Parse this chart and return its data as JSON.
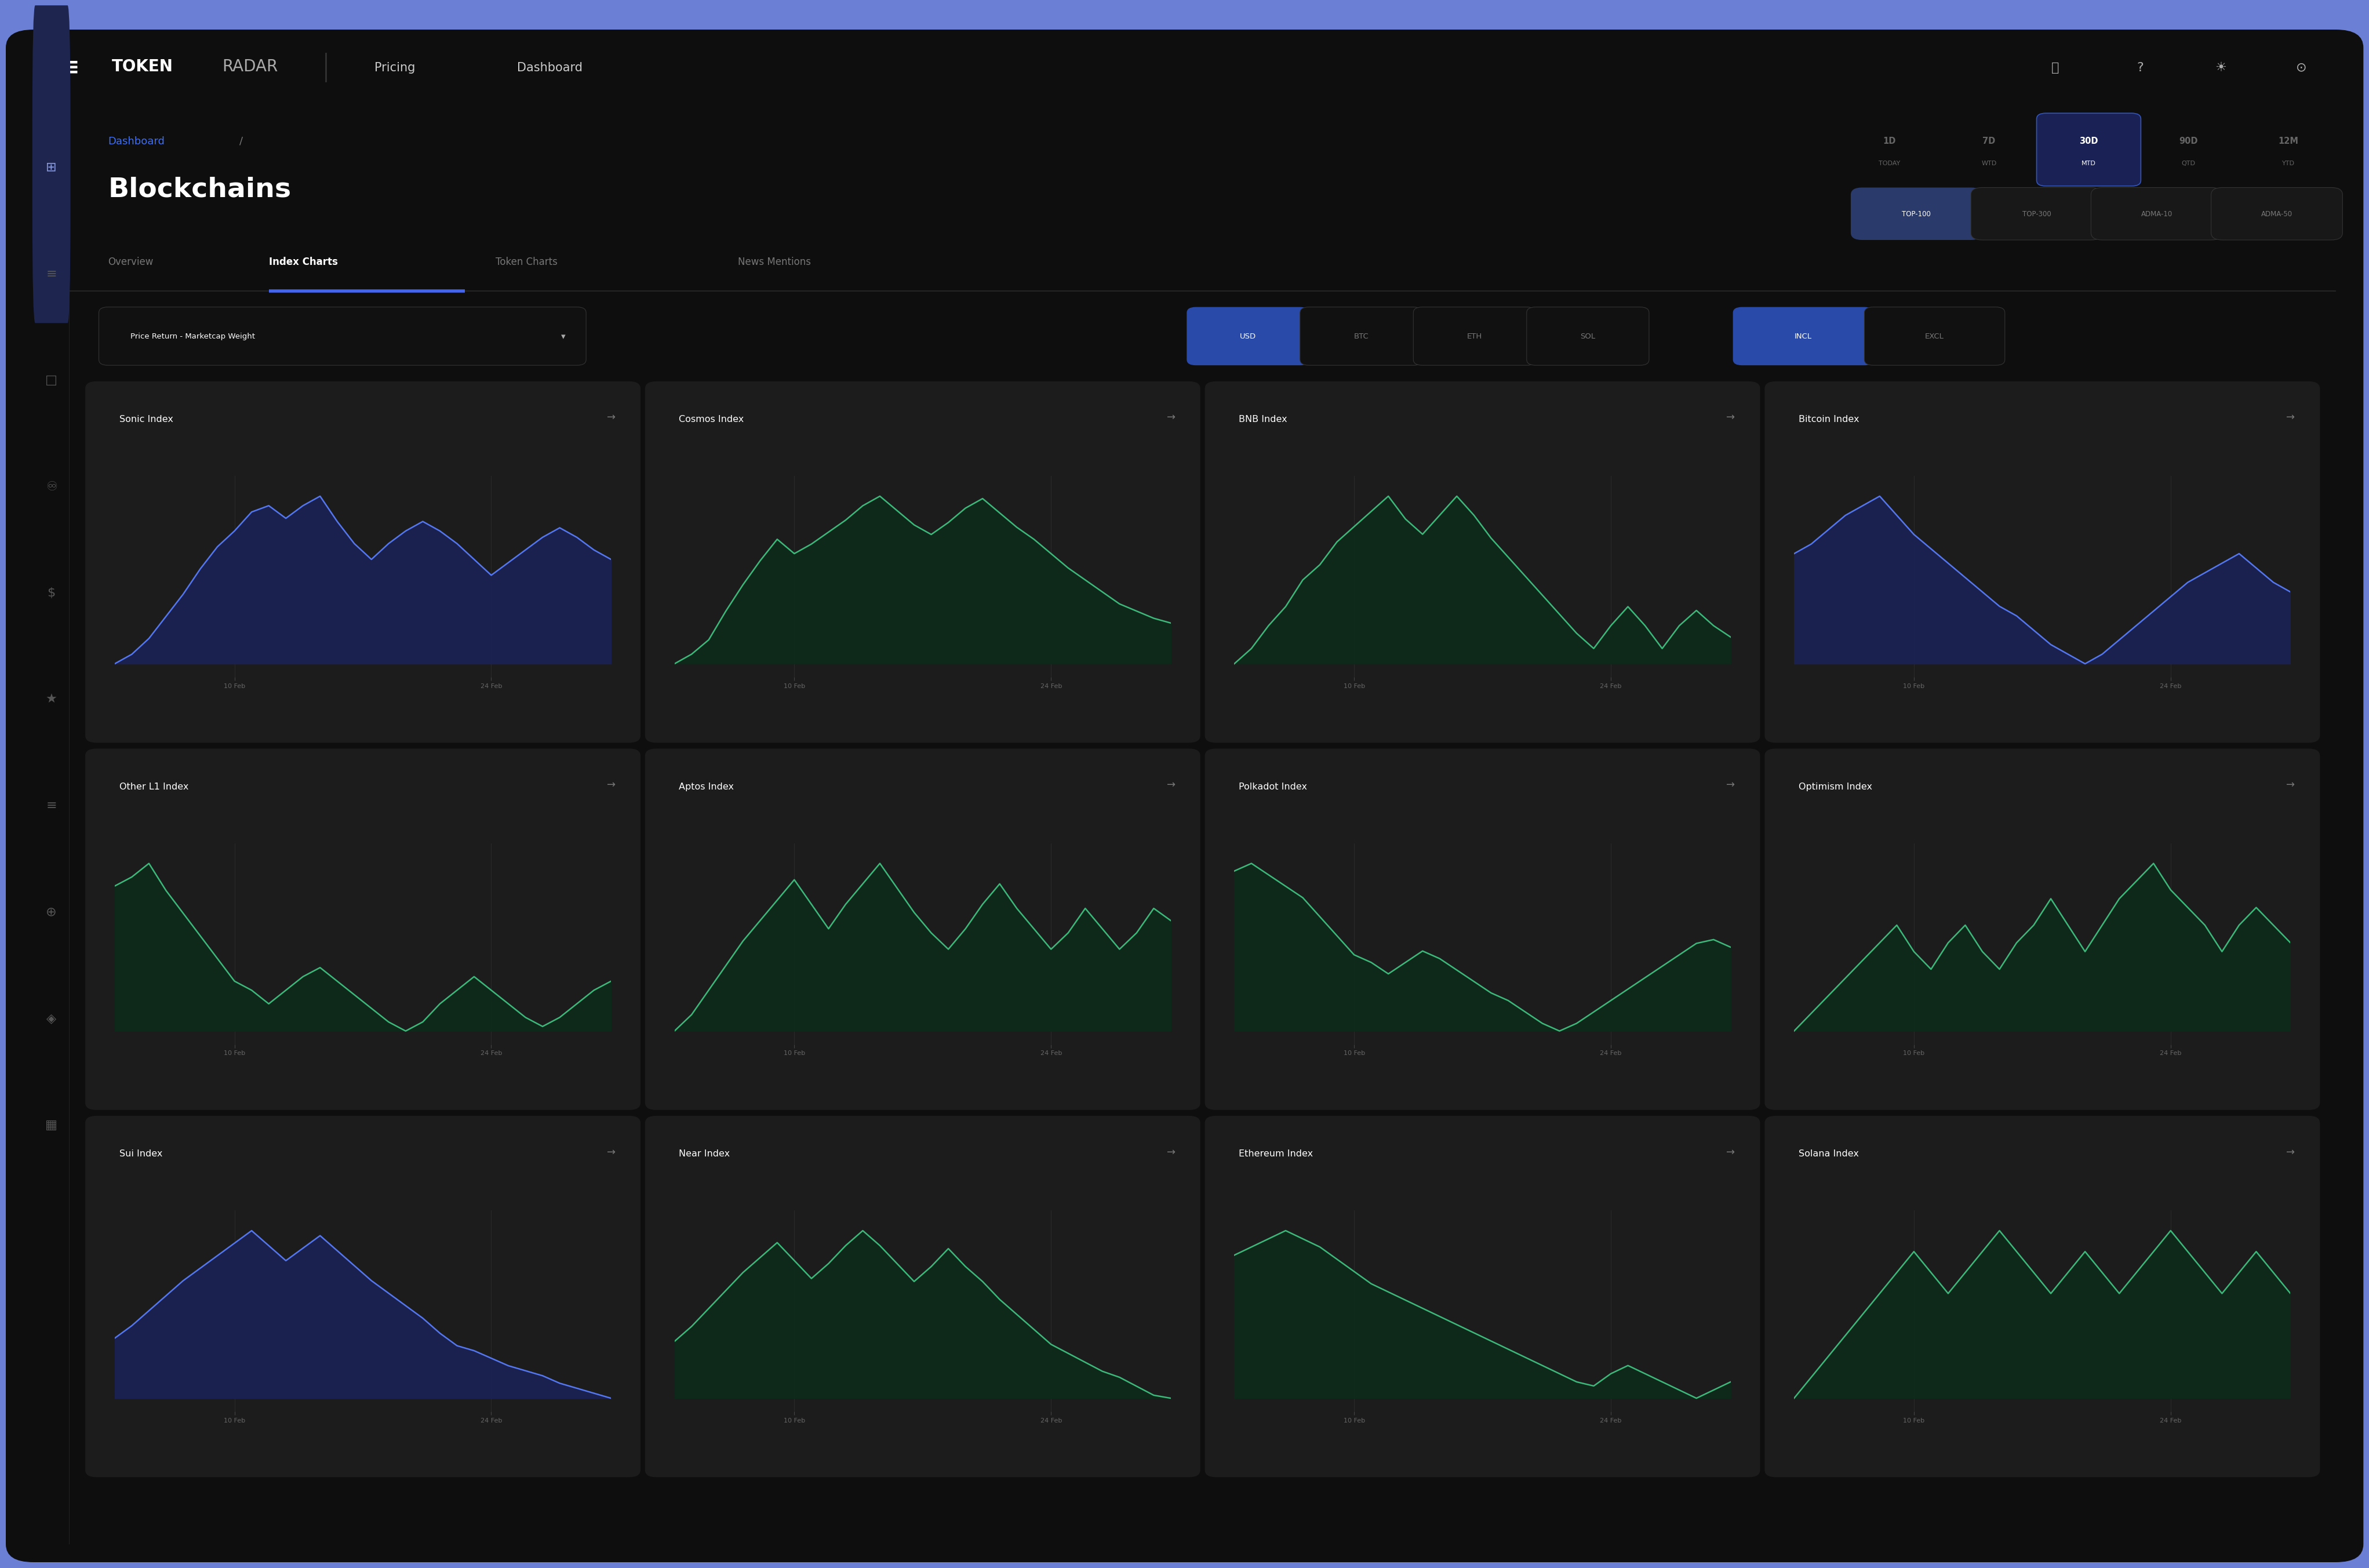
{
  "bg_outer": "#6b7fd4",
  "bg_app": "#0e0e0e",
  "bg_topbar": "#111111",
  "bg_content": "#0d0d0d",
  "bg_card": "#1c1c1c",
  "bg_sidebar": "#0d0d0d",
  "bg_sidebar_hl": "#1e2650",
  "color_blue": "#3d6ef5",
  "color_blue_btn": "#2a4aaa",
  "color_active_tab_line": "#4466ee",
  "color_line_blue": "#5577ee",
  "color_fill_blue": "#1a2255",
  "color_line_green": "#3db87a",
  "color_fill_green": "#0d2a1a",
  "charts": [
    {
      "title": "Sonic Index",
      "line": "#5577ee",
      "fill": "#1a2255"
    },
    {
      "title": "Cosmos Index",
      "line": "#3db87a",
      "fill": "#0d2a1a"
    },
    {
      "title": "BNB Index",
      "line": "#3db87a",
      "fill": "#0d2a1a"
    },
    {
      "title": "Bitcoin Index",
      "line": "#5577ee",
      "fill": "#1a2255"
    },
    {
      "title": "Other L1 Index",
      "line": "#3db87a",
      "fill": "#0d2a1a"
    },
    {
      "title": "Aptos Index",
      "line": "#3db87a",
      "fill": "#0d2a1a"
    },
    {
      "title": "Polkadot Index",
      "line": "#3db87a",
      "fill": "#0d2a1a"
    },
    {
      "title": "Optimism Index",
      "line": "#3db87a",
      "fill": "#0d2a1a"
    },
    {
      "title": "Sui Index",
      "line": "#5577ee",
      "fill": "#1a2255"
    },
    {
      "title": "Near Index",
      "line": "#3db87a",
      "fill": "#0d2a1a"
    },
    {
      "title": "Ethereum Index",
      "line": "#3db87a",
      "fill": "#0d2a1a"
    },
    {
      "title": "Solana Index",
      "line": "#3db87a",
      "fill": "#0d2a1a"
    }
  ],
  "xtick_labels": [
    "10 Feb",
    "24 Feb"
  ],
  "sonic_y": [
    30,
    33,
    38,
    45,
    52,
    60,
    67,
    72,
    78,
    80,
    76,
    80,
    83,
    75,
    68,
    63,
    68,
    72,
    75,
    72,
    68,
    63,
    58,
    62,
    66,
    70,
    73,
    70,
    66,
    63
  ],
  "cosmos_y": [
    20,
    24,
    30,
    42,
    53,
    63,
    72,
    66,
    70,
    75,
    80,
    86,
    90,
    84,
    78,
    74,
    79,
    85,
    89,
    83,
    77,
    72,
    66,
    60,
    55,
    50,
    45,
    42,
    39,
    37
  ],
  "bnb_y": [
    40,
    44,
    50,
    55,
    62,
    66,
    72,
    76,
    80,
    84,
    78,
    74,
    79,
    84,
    79,
    73,
    68,
    63,
    58,
    53,
    48,
    44,
    50,
    55,
    50,
    44,
    50,
    54,
    50,
    47
  ],
  "bitcoin_y": [
    50,
    52,
    55,
    58,
    60,
    62,
    58,
    54,
    51,
    48,
    45,
    42,
    39,
    37,
    34,
    31,
    29,
    27,
    29,
    32,
    35,
    38,
    41,
    44,
    46,
    48,
    50,
    47,
    44,
    42
  ],
  "other_l1_y": [
    50,
    52,
    55,
    49,
    44,
    39,
    34,
    29,
    27,
    24,
    27,
    30,
    32,
    29,
    26,
    23,
    20,
    18,
    20,
    24,
    27,
    30,
    27,
    24,
    21,
    19,
    21,
    24,
    27,
    29
  ],
  "aptos_y": [
    30,
    34,
    40,
    46,
    52,
    57,
    62,
    67,
    61,
    55,
    61,
    66,
    71,
    65,
    59,
    54,
    50,
    55,
    61,
    66,
    60,
    55,
    50,
    54,
    60,
    55,
    50,
    54,
    60,
    57
  ],
  "polkadot_y": [
    50,
    52,
    49,
    46,
    43,
    38,
    33,
    28,
    26,
    23,
    26,
    29,
    27,
    24,
    21,
    18,
    16,
    13,
    10,
    8,
    10,
    13,
    16,
    19,
    22,
    25,
    28,
    31,
    32,
    30
  ],
  "optimism_y": [
    40,
    42,
    44,
    46,
    48,
    50,
    52,
    49,
    47,
    50,
    52,
    49,
    47,
    50,
    52,
    55,
    52,
    49,
    52,
    55,
    57,
    59,
    56,
    54,
    52,
    49,
    52,
    54,
    52,
    50
  ],
  "sui_y": [
    30,
    35,
    41,
    47,
    53,
    58,
    63,
    68,
    73,
    67,
    61,
    66,
    71,
    65,
    59,
    53,
    48,
    43,
    38,
    32,
    27,
    25,
    22,
    19,
    17,
    15,
    12,
    10,
    8,
    6
  ],
  "near_y": [
    30,
    35,
    41,
    47,
    53,
    58,
    63,
    57,
    51,
    56,
    62,
    67,
    62,
    56,
    50,
    55,
    61,
    55,
    50,
    44,
    39,
    34,
    29,
    26,
    23,
    20,
    18,
    15,
    12,
    11
  ],
  "ethereum_y": [
    40,
    42,
    44,
    46,
    44,
    42,
    39,
    36,
    33,
    31,
    29,
    27,
    25,
    23,
    21,
    19,
    17,
    15,
    13,
    11,
    9,
    8,
    11,
    13,
    11,
    9,
    7,
    5,
    7,
    9
  ],
  "solana_y": [
    40,
    42,
    44,
    46,
    48,
    50,
    52,
    54,
    52,
    50,
    52,
    54,
    56,
    54,
    52,
    50,
    52,
    54,
    52,
    50,
    52,
    54,
    56,
    54,
    52,
    50,
    52,
    54,
    52,
    50
  ]
}
